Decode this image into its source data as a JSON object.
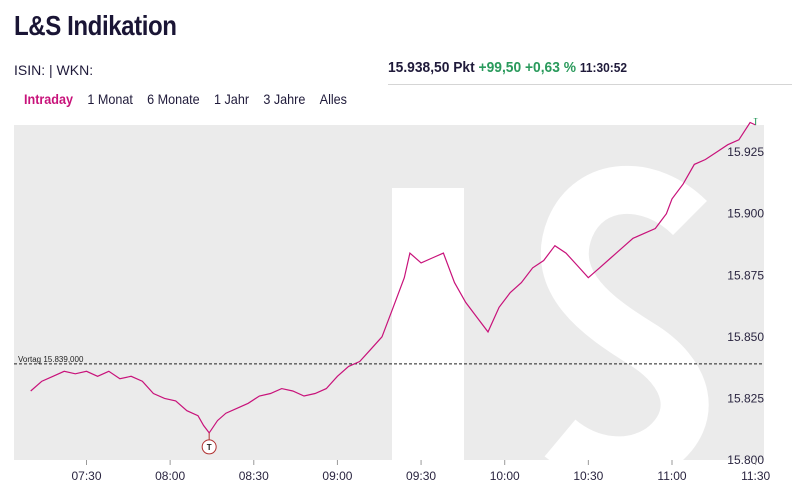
{
  "header": {
    "title": "L&S Indikation",
    "isin_label": "ISIN: | WKN:"
  },
  "quote": {
    "price": "15.938,50 Pkt",
    "change_abs": "+99,50",
    "change_pct": "+0,63 %",
    "time": "11:30:52"
  },
  "tabs": [
    "Intraday",
    "1 Monat",
    "6 Monate",
    "1 Jahr",
    "3 Jahre",
    "Alles"
  ],
  "active_tab": "Intraday",
  "colors": {
    "line": "#c8127a",
    "positive": "#2a9a5c",
    "plot_bg": "#ebebeb",
    "watermark": "#ffffff"
  },
  "chart_data": {
    "type": "line",
    "title": "",
    "xlabel": "",
    "ylabel": "",
    "x_ticks": [
      "07:30",
      "08:00",
      "08:30",
      "09:00",
      "09:30",
      "10:00",
      "10:30",
      "11:00",
      "11:30"
    ],
    "y_ticks": [
      "15.925",
      "15.900",
      "15.875",
      "15.850",
      "15.825",
      "15.800"
    ],
    "ylim": [
      15800,
      15936
    ],
    "xlim": [
      "07:04",
      "11:33"
    ],
    "reference_line": {
      "label": "Vortag 15.839,000",
      "value": 15839
    },
    "markers": [
      {
        "label": "T",
        "time": "08:14",
        "value": 15811
      },
      {
        "label": "H",
        "time": "11:30",
        "value": 15936
      }
    ],
    "series": [
      {
        "points": [
          [
            "07:10",
            15828
          ],
          [
            "07:14",
            15832
          ],
          [
            "07:18",
            15834
          ],
          [
            "07:22",
            15836
          ],
          [
            "07:26",
            15835
          ],
          [
            "07:30",
            15836
          ],
          [
            "07:34",
            15834
          ],
          [
            "07:38",
            15836
          ],
          [
            "07:42",
            15833
          ],
          [
            "07:46",
            15834
          ],
          [
            "07:50",
            15832
          ],
          [
            "07:54",
            15827
          ],
          [
            "07:58",
            15825
          ],
          [
            "08:02",
            15824
          ],
          [
            "08:06",
            15820
          ],
          [
            "08:10",
            15818
          ],
          [
            "08:12",
            15814
          ],
          [
            "08:14",
            15811
          ],
          [
            "08:17",
            15816
          ],
          [
            "08:20",
            15819
          ],
          [
            "08:24",
            15821
          ],
          [
            "08:28",
            15823
          ],
          [
            "08:32",
            15826
          ],
          [
            "08:36",
            15827
          ],
          [
            "08:40",
            15829
          ],
          [
            "08:44",
            15828
          ],
          [
            "08:48",
            15826
          ],
          [
            "08:52",
            15827
          ],
          [
            "08:56",
            15829
          ],
          [
            "09:00",
            15834
          ],
          [
            "09:04",
            15838
          ],
          [
            "09:08",
            15840
          ],
          [
            "09:12",
            15845
          ],
          [
            "09:16",
            15850
          ],
          [
            "09:20",
            15862
          ],
          [
            "09:24",
            15874
          ],
          [
            "09:26",
            15884
          ],
          [
            "09:30",
            15880
          ],
          [
            "09:34",
            15882
          ],
          [
            "09:38",
            15884
          ],
          [
            "09:42",
            15872
          ],
          [
            "09:46",
            15864
          ],
          [
            "09:50",
            15858
          ],
          [
            "09:54",
            15852
          ],
          [
            "09:58",
            15862
          ],
          [
            "10:02",
            15868
          ],
          [
            "10:06",
            15872
          ],
          [
            "10:10",
            15878
          ],
          [
            "10:14",
            15881
          ],
          [
            "10:18",
            15887
          ],
          [
            "10:22",
            15884
          ],
          [
            "10:26",
            15879
          ],
          [
            "10:30",
            15874
          ],
          [
            "10:34",
            15878
          ],
          [
            "10:38",
            15882
          ],
          [
            "10:42",
            15886
          ],
          [
            "10:46",
            15890
          ],
          [
            "10:50",
            15892
          ],
          [
            "10:54",
            15894
          ],
          [
            "10:58",
            15900
          ],
          [
            "11:00",
            15906
          ],
          [
            "11:04",
            15912
          ],
          [
            "11:08",
            15920
          ],
          [
            "11:12",
            15922
          ],
          [
            "11:16",
            15925
          ],
          [
            "11:20",
            15928
          ],
          [
            "11:24",
            15930
          ],
          [
            "11:28",
            15937
          ],
          [
            "11:30",
            15936
          ]
        ]
      }
    ]
  }
}
